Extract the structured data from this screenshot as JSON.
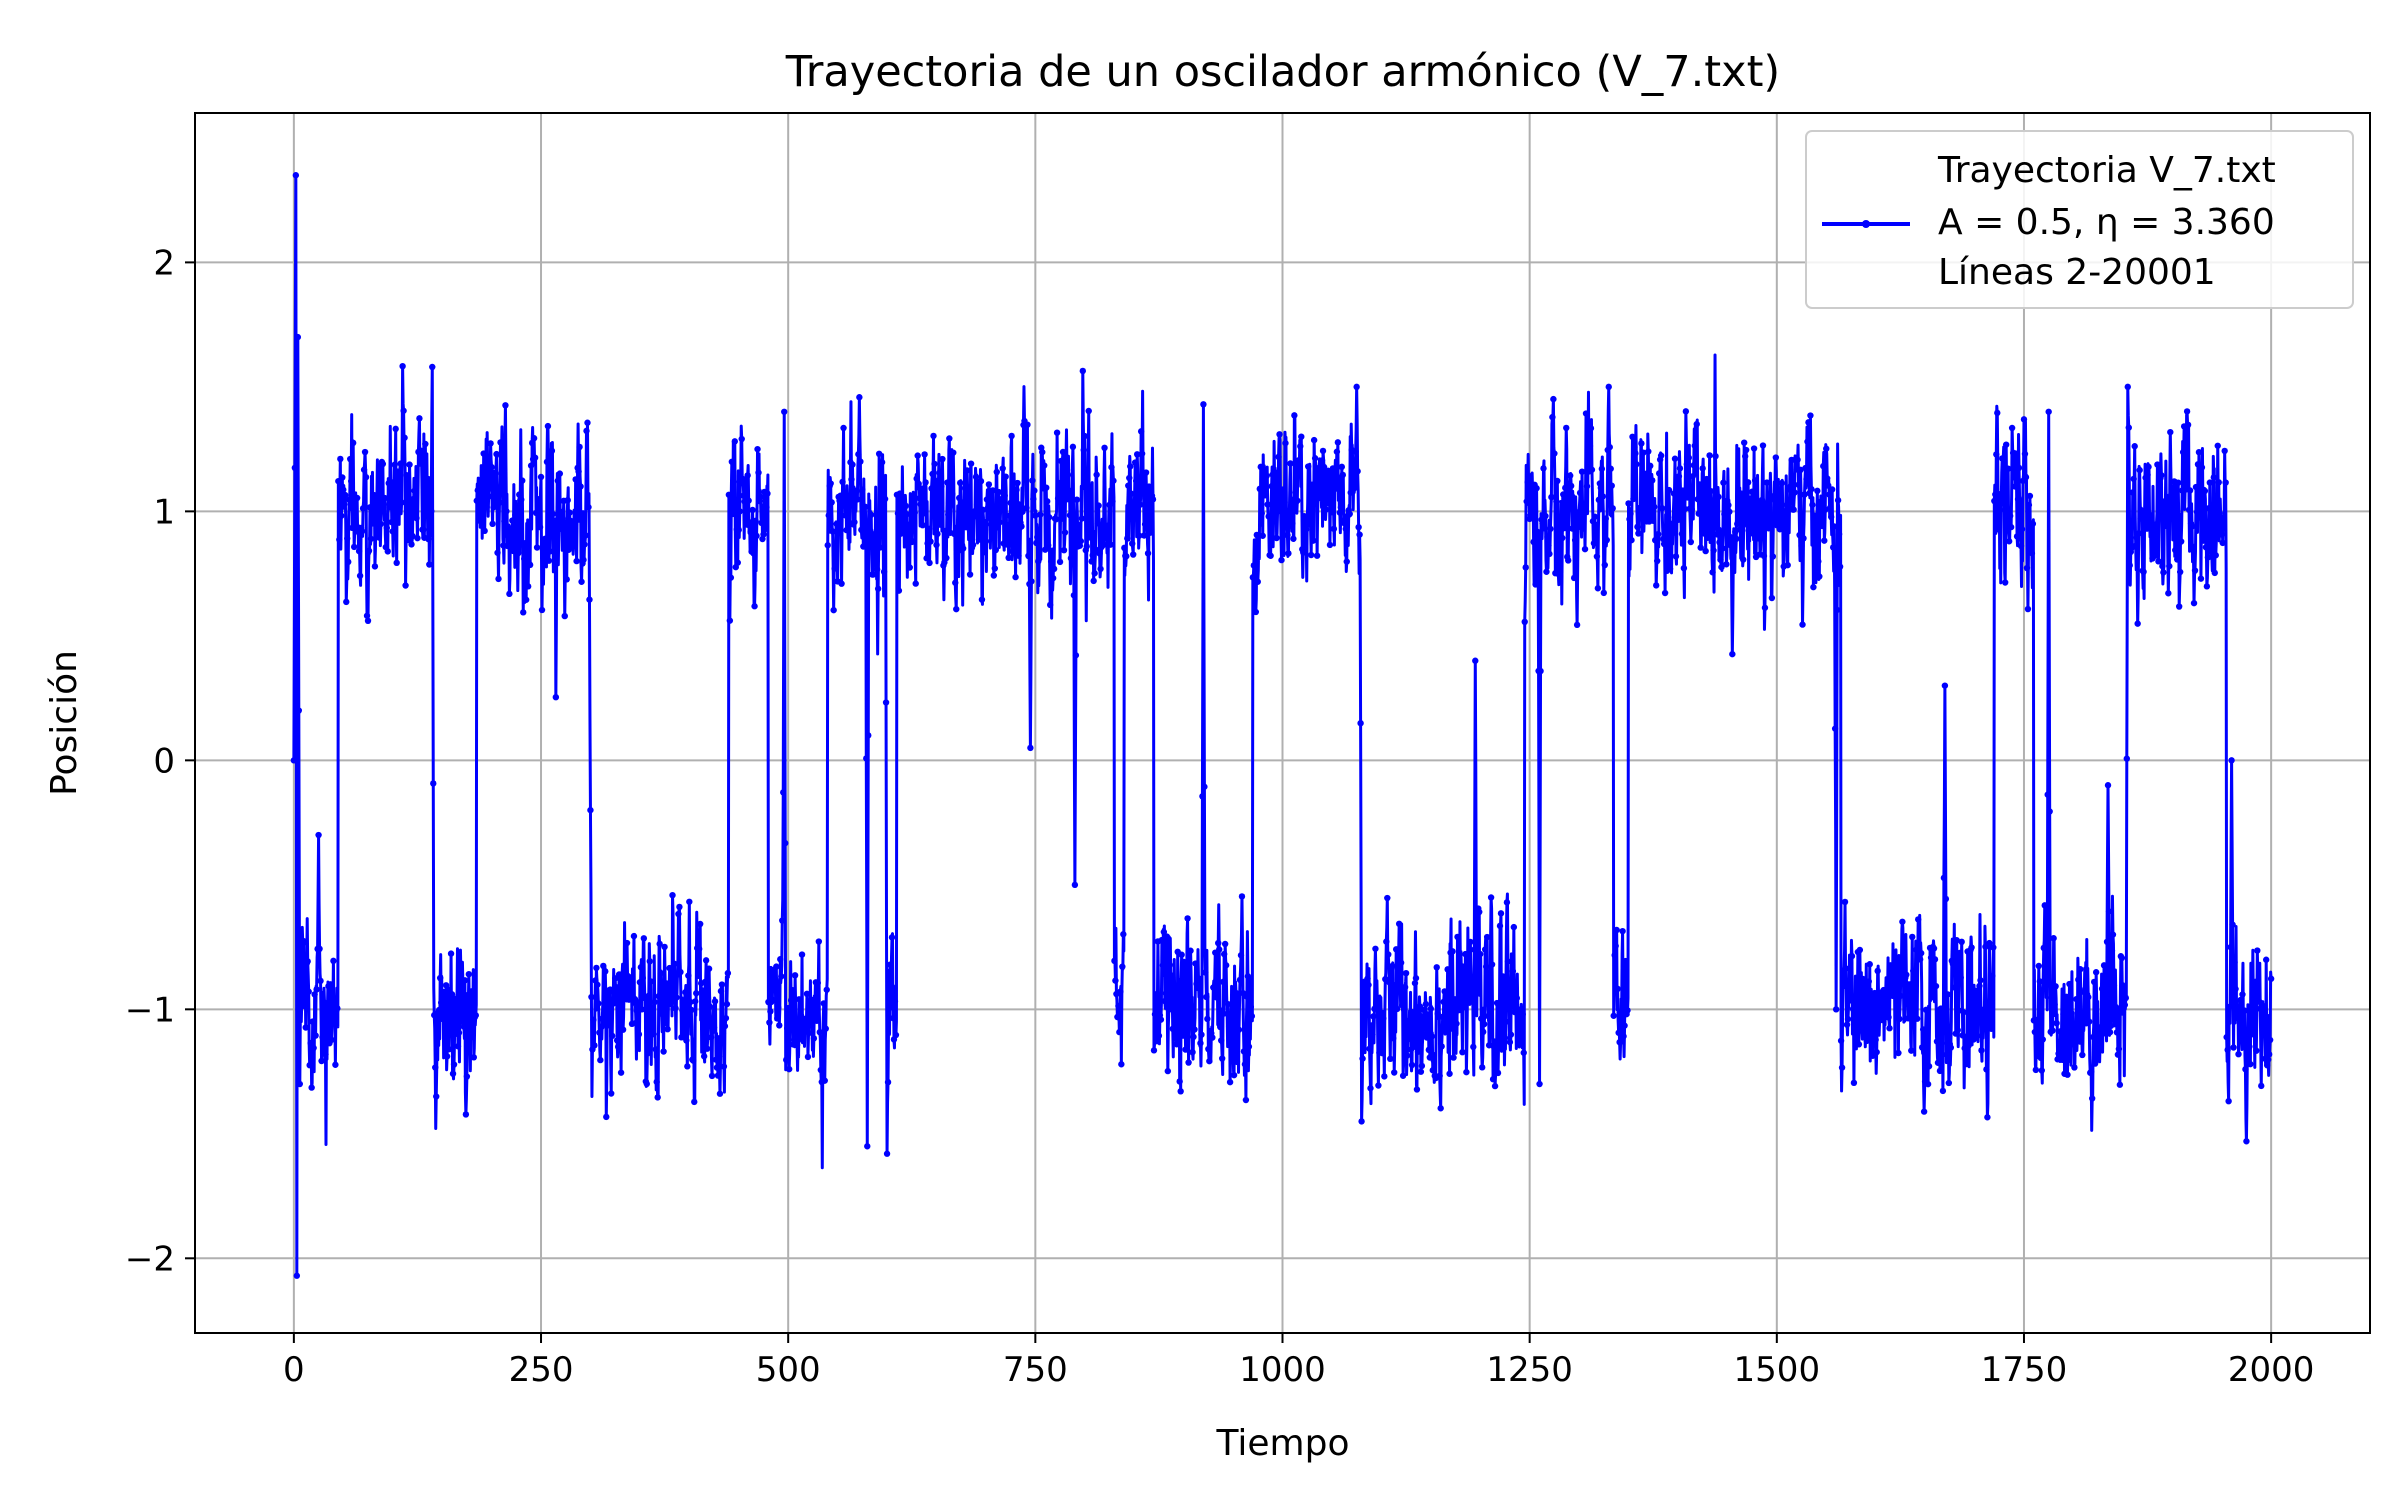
{
  "chart_data": {
    "type": "line",
    "title": "Trayectoria de un oscilador armónico (V_7.txt)",
    "xlabel": "Tiempo",
    "ylabel": "Posición",
    "xlim": [
      -100,
      2100
    ],
    "ylim": [
      -2.3,
      2.6
    ],
    "xticks": [
      0,
      250,
      500,
      750,
      1000,
      1250,
      1500,
      1750,
      2000
    ],
    "xtick_labels": [
      "0",
      "250",
      "500",
      "750",
      "1000",
      "1250",
      "1500",
      "1750",
      "2000"
    ],
    "yticks": [
      -2,
      -1,
      0,
      1,
      2
    ],
    "ytick_labels": [
      "−2",
      "−1",
      "0",
      "1",
      "2"
    ],
    "grid": true,
    "legend_position": "top-right",
    "series_color": "#0000ff",
    "legend_lines": [
      "Trayectoria V_7.txt",
      "A = 0.5, η = 3.360",
      "Líneas 2-20001"
    ],
    "series": [
      {
        "name": "Trayectoria V_7.txt",
        "x_range": [
          0,
          2000
        ],
        "points_shown": 20000,
        "x_step": 0.1,
        "initial_transient": [
          [
            0,
            0
          ],
          [
            2,
            2.35
          ],
          [
            3,
            -2.07
          ],
          [
            4,
            1.7
          ],
          [
            6,
            -1.3
          ]
        ],
        "well_centers": [
          -1,
          1
        ],
        "fluctuation_range_around_well": [
          -0.55,
          0.55
        ],
        "extremes": {
          "max": 2.35,
          "min": -2.07
        },
        "regimes": [
          {
            "from": 0,
            "to": 45,
            "level": -1
          },
          {
            "from": 45,
            "to": 140,
            "level": 1
          },
          {
            "from": 140,
            "to": 185,
            "level": -1
          },
          {
            "from": 185,
            "to": 300,
            "level": 1
          },
          {
            "from": 300,
            "to": 440,
            "level": -1
          },
          {
            "from": 440,
            "to": 480,
            "level": 1
          },
          {
            "from": 480,
            "to": 540,
            "level": -1
          },
          {
            "from": 540,
            "to": 600,
            "level": 1
          },
          {
            "from": 600,
            "to": 610,
            "level": -1
          },
          {
            "from": 610,
            "to": 830,
            "level": 1
          },
          {
            "from": 830,
            "to": 840,
            "level": -1
          },
          {
            "from": 840,
            "to": 870,
            "level": 1
          },
          {
            "from": 870,
            "to": 970,
            "level": -1
          },
          {
            "from": 970,
            "to": 1080,
            "level": 1
          },
          {
            "from": 1080,
            "to": 1245,
            "level": -1
          },
          {
            "from": 1245,
            "to": 1335,
            "level": 1
          },
          {
            "from": 1335,
            "to": 1350,
            "level": -1
          },
          {
            "from": 1350,
            "to": 1565,
            "level": 1
          },
          {
            "from": 1565,
            "to": 1720,
            "level": -1
          },
          {
            "from": 1720,
            "to": 1760,
            "level": 1
          },
          {
            "from": 1760,
            "to": 1855,
            "level": -1
          },
          {
            "from": 1855,
            "to": 1955,
            "level": 1
          },
          {
            "from": 1955,
            "to": 2000,
            "level": -1
          }
        ],
        "brief_excursions": [
          {
            "at": 25,
            "value": -0.3
          },
          {
            "at": 140,
            "value": 1.58
          },
          {
            "at": 300,
            "value": -0.2
          },
          {
            "at": 496,
            "value": 1.4
          },
          {
            "at": 580,
            "value": -1.55
          },
          {
            "at": 600,
            "value": -1.58
          },
          {
            "at": 745,
            "value": 0.05
          },
          {
            "at": 790,
            "value": -0.5
          },
          {
            "at": 920,
            "value": 1.43
          },
          {
            "at": 1075,
            "value": 1.5
          },
          {
            "at": 1080,
            "value": -1.45
          },
          {
            "at": 1195,
            "value": 0.4
          },
          {
            "at": 1260,
            "value": -1.3
          },
          {
            "at": 1330,
            "value": 1.5
          },
          {
            "at": 1560,
            "value": -1.0
          },
          {
            "at": 1670,
            "value": 0.3
          },
          {
            "at": 1775,
            "value": 1.4
          },
          {
            "at": 1835,
            "value": -0.1
          },
          {
            "at": 1855,
            "value": 1.5
          },
          {
            "at": 1960,
            "value": 0.0
          },
          {
            "at": 1975,
            "value": -1.53
          }
        ]
      }
    ]
  }
}
